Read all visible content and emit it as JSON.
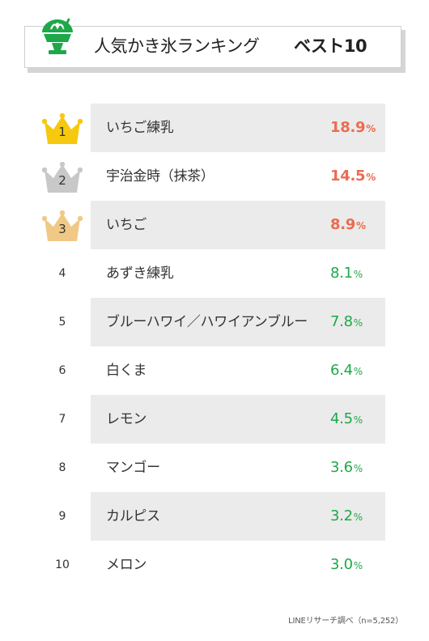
{
  "header": {
    "title": "人気かき氷ランキング",
    "subtitle": "ベスト10",
    "icon": "shaved-ice-icon",
    "accent_color": "#1ea84a"
  },
  "chart_data": {
    "type": "table",
    "title": "人気かき氷ランキング",
    "subtitle": "ベスト10",
    "unit": "%",
    "rows": [
      {
        "rank": "1",
        "label": "いちご練乳",
        "value": "18.9"
      },
      {
        "rank": "2",
        "label": "宇治金時（抹茶）",
        "value": "14.5"
      },
      {
        "rank": "3",
        "label": "いちご",
        "value": "8.9"
      },
      {
        "rank": "4",
        "label": "あずき練乳",
        "value": "8.1"
      },
      {
        "rank": "5",
        "label": "ブルーハワイ／ハワイアンブルー",
        "value": "7.8"
      },
      {
        "rank": "6",
        "label": "白くま",
        "value": "6.4"
      },
      {
        "rank": "7",
        "label": "レモン",
        "value": "4.5"
      },
      {
        "rank": "8",
        "label": "マンゴー",
        "value": "3.6"
      },
      {
        "rank": "9",
        "label": "カルピス",
        "value": "3.2"
      },
      {
        "rank": "10",
        "label": "メロン",
        "value": "3.0"
      }
    ],
    "colors": {
      "top3_value": "#ec6b50",
      "rest_value": "#1ea84a",
      "gold_crown": "#f6c90e",
      "silver_crown": "#c8c8c8",
      "bronze_crown": "#f0c987",
      "shaded_row": "#ebebeb"
    }
  },
  "source": "LINEリサーチ調べ（n=5,252）"
}
